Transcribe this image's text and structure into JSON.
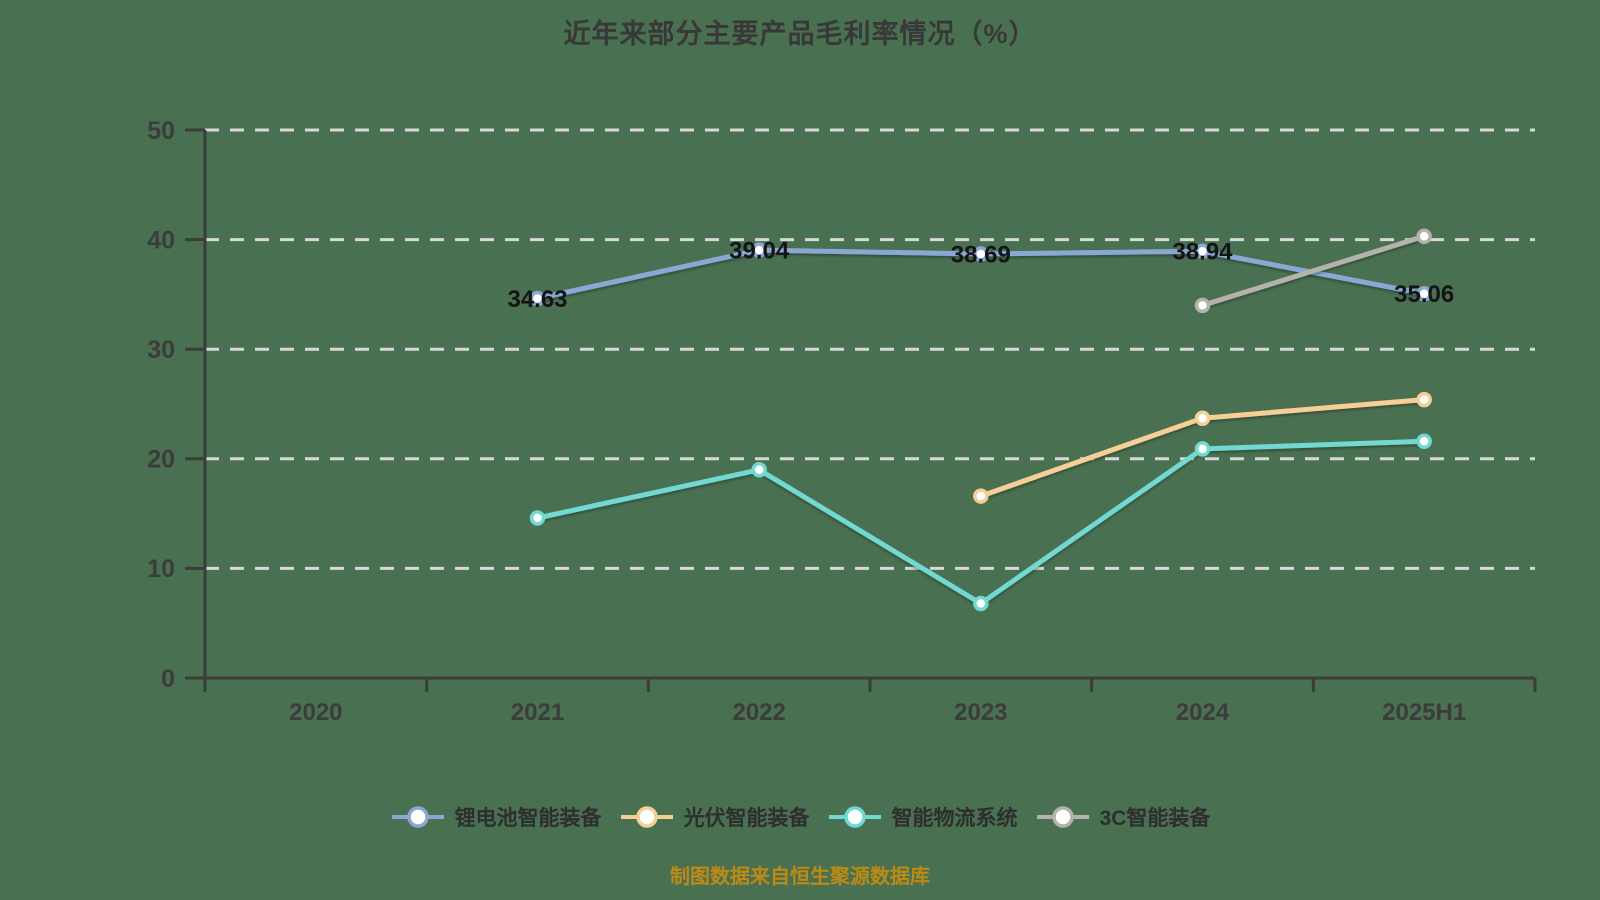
{
  "title": "近年来部分主要产品毛利率情况（%）",
  "caption": "制图数据来自恒生聚源数据库",
  "colors": {
    "background": "#497050",
    "axis": "#3c3c3c",
    "grid": "#d8d8d8",
    "tick_label": "#3c3c3c",
    "data_label": "#141414",
    "title": "#383838",
    "caption": "#bd8a16",
    "marker_fill": "#ffffff"
  },
  "chart_data": {
    "type": "line",
    "title": "近年来部分主要产品毛利率情况（%）",
    "categories": [
      "2020",
      "2021",
      "2022",
      "2023",
      "2024",
      "2025H1"
    ],
    "series": [
      {
        "name": "锂电池智能装备",
        "color": "#8ba7d6",
        "values": [
          null,
          34.63,
          39.04,
          38.69,
          38.94,
          35.06
        ],
        "show_labels": true
      },
      {
        "name": "光伏智能装备",
        "color": "#f6cf96",
        "values": [
          null,
          null,
          null,
          16.6,
          23.7,
          25.4
        ],
        "show_labels": false
      },
      {
        "name": "智能物流系统",
        "color": "#71d8d3",
        "values": [
          null,
          14.6,
          19.0,
          6.8,
          20.9,
          21.6
        ],
        "show_labels": false
      },
      {
        "name": "3C智能装备",
        "color": "#b4b2ae",
        "values": [
          null,
          null,
          null,
          null,
          34.0,
          40.3
        ],
        "show_labels": false
      }
    ],
    "xlabel": "",
    "ylabel": "",
    "ylim": [
      0,
      50
    ],
    "yticks": [
      0,
      10,
      20,
      30,
      40,
      50
    ],
    "grid": "horizontal-dashed",
    "legend_position": "bottom"
  }
}
